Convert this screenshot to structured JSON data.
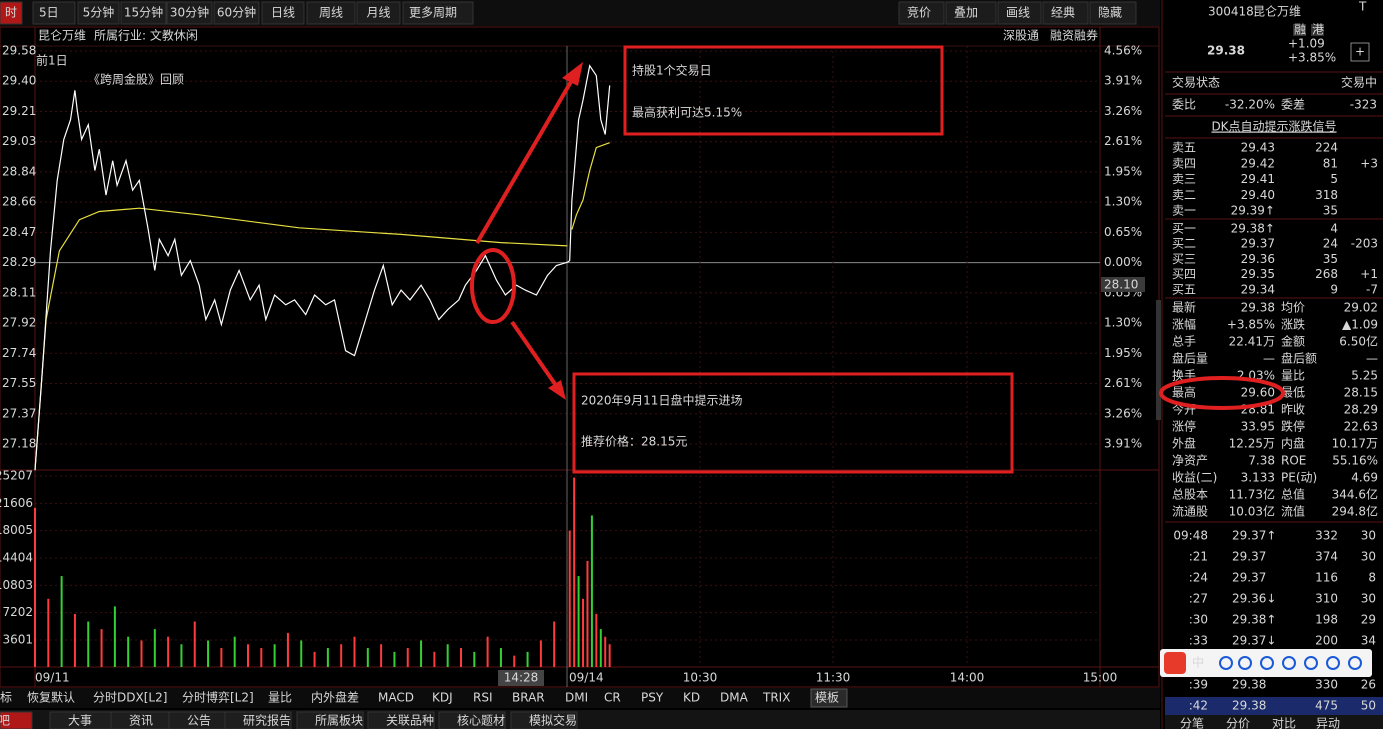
{
  "toolbar": {
    "left": [
      "时",
      "5日",
      "5分钟",
      "15分钟",
      "30分钟",
      "60分钟",
      "日线",
      "周线",
      "月线",
      "更多周期"
    ],
    "right": [
      "竞价",
      "叠加",
      "画线",
      "经典",
      "隐藏"
    ]
  },
  "header": {
    "name": "昆仑万维",
    "industry": "所属行业: 文教休闲",
    "tags": [
      "深股通",
      "融资融券"
    ],
    "prev_day": "前1日"
  },
  "annotations": {
    "title": "《跨周金股》回顾",
    "box1": [
      "持股1个交易日",
      "最高获利可达5.15%"
    ],
    "box2": [
      "2020年9月11日盘中提示进场",
      "推荐价格：28.15元"
    ]
  },
  "chart": {
    "price_ticks": [
      "29.58",
      "29.40",
      "29.21",
      "29.03",
      "28.84",
      "28.66",
      "28.47",
      "28.29",
      "28.11",
      "27.92",
      "27.74",
      "27.55",
      "27.37",
      "27.18"
    ],
    "pct_ticks": [
      "4.56%",
      "3.91%",
      "3.26%",
      "2.61%",
      "1.95%",
      "1.30%",
      "0.65%",
      "0.00%",
      "0.65%",
      "1.30%",
      "1.95%",
      "2.61%",
      "3.26%",
      "3.91%"
    ],
    "current": "28.10",
    "ylim": [
      27.18,
      29.58
    ],
    "xlim": [
      0,
      480
    ],
    "volume_ticks": [
      "25207",
      "21606",
      "18005",
      "14404",
      "10803",
      "7202",
      "3601"
    ],
    "vlim": [
      0,
      25207
    ],
    "time_labels": [
      "09/11",
      "14:28",
      "09/14",
      "10:30",
      "11:30",
      "14:00",
      "15:00"
    ],
    "price": {
      "minutes": [
        0,
        3,
        7,
        10,
        13,
        16,
        18,
        19,
        21,
        24,
        27,
        29,
        32,
        35,
        37,
        41,
        44,
        47,
        51,
        54,
        56,
        60,
        63,
        66,
        70,
        74,
        77,
        81,
        84,
        88,
        92,
        97,
        101,
        104,
        108,
        113,
        117,
        122,
        126,
        131,
        135,
        140,
        144,
        149,
        153,
        157,
        161,
        165,
        169,
        174,
        178,
        182,
        186,
        191,
        194,
        199,
        203,
        208,
        212,
        217,
        221,
        226,
        231,
        235,
        240,
        241,
        242,
        245,
        247,
        250,
        253,
        255,
        257,
        259
      ],
      "values": [
        27.02,
        27.57,
        28.36,
        28.79,
        29.04,
        29.16,
        29.34,
        29.22,
        29.04,
        29.13,
        28.85,
        28.98,
        28.7,
        28.91,
        28.76,
        28.91,
        28.73,
        28.79,
        28.49,
        28.24,
        28.43,
        28.33,
        28.43,
        28.21,
        28.3,
        28.15,
        27.94,
        28.06,
        27.91,
        28.12,
        28.24,
        28.06,
        28.15,
        27.94,
        28.09,
        28.03,
        28.06,
        27.97,
        28.09,
        28.03,
        28.06,
        27.75,
        27.72,
        27.94,
        28.12,
        28.27,
        28.03,
        28.12,
        28.06,
        28.15,
        28.06,
        27.94,
        28.0,
        28.06,
        28.15,
        28.24,
        28.33,
        28.18,
        28.09,
        28.15,
        28.12,
        28.09,
        28.21,
        28.27,
        28.29,
        28.3,
        28.67,
        29.16,
        29.28,
        29.49,
        29.43,
        29.16,
        29.07,
        29.37
      ]
    },
    "avg": [
      {
        "minutes": [
          0,
          5,
          11,
          20,
          29,
          47,
          74,
          119,
          165,
          210,
          240
        ],
        "values": [
          27.02,
          27.94,
          28.36,
          28.55,
          28.6,
          28.62,
          28.58,
          28.5,
          28.46,
          28.41,
          28.39
        ]
      },
      {
        "minutes": [
          242,
          244,
          247,
          250,
          253,
          259
        ],
        "values": [
          28.49,
          28.58,
          28.67,
          28.85,
          28.99,
          29.02
        ]
      }
    ],
    "volume": {
      "minutes": [
        0,
        6,
        12,
        18,
        24,
        30,
        36,
        42,
        48,
        54,
        60,
        66,
        72,
        78,
        84,
        90,
        96,
        102,
        108,
        114,
        120,
        126,
        132,
        138,
        144,
        150,
        156,
        162,
        168,
        174,
        180,
        186,
        192,
        198,
        204,
        210,
        216,
        222,
        228,
        234,
        241,
        243,
        245,
        247,
        249,
        251,
        253,
        255,
        257,
        259
      ],
      "values": [
        21000,
        9000,
        12000,
        7000,
        6000,
        5000,
        8000,
        4000,
        3500,
        5000,
        4000,
        3000,
        6000,
        3500,
        2500,
        4000,
        3000,
        2500,
        3000,
        4500,
        3500,
        2000,
        2500,
        3000,
        4000,
        2500,
        3000,
        2000,
        2500,
        3500,
        2000,
        3000,
        2500,
        2000,
        4000,
        2500,
        1500,
        2000,
        3500,
        6000,
        18000,
        25000,
        12000,
        9000,
        14000,
        20000,
        7000,
        5000,
        4000,
        3000
      ],
      "colors": [
        "#ff3b3b",
        "#ff3b3b",
        "#34d134",
        "#ff3b3b",
        "#34d134",
        "#ff3b3b",
        "#34d134",
        "#34d134",
        "#ff3b3b",
        "#34d134",
        "#ff3b3b",
        "#34d134",
        "#ff3b3b",
        "#34d134",
        "#ff3b3b",
        "#34d134",
        "#ff3b3b",
        "#ff3b3b",
        "#34d134",
        "#ff3b3b",
        "#34d134",
        "#ff3b3b",
        "#34d134",
        "#ff3b3b",
        "#ff3b3b",
        "#34d134",
        "#ff3b3b",
        "#34d134",
        "#ff3b3b",
        "#34d134",
        "#ff3b3b",
        "#34d134",
        "#ff3b3b",
        "#34d134",
        "#ff3b3b",
        "#34d134",
        "#ff3b3b",
        "#34d134",
        "#ff3b3b",
        "#ff3b3b",
        "#ff3b3b",
        "#ff3b3b",
        "#34d134",
        "#ff3b3b",
        "#ff3b3b",
        "#34d134",
        "#ff3b3b",
        "#34d134",
        "#ff3b3b",
        "#ff3b3b"
      ]
    }
  },
  "indicator_tabs": [
    "标",
    "恢复默认",
    "分时DDX[L2]",
    "分时博弈[L2]",
    "量比",
    "内外盘差",
    "MACD",
    "KDJ",
    "RSI",
    "BRAR",
    "DMI",
    "CR",
    "PSY",
    "KD",
    "DMA",
    "TRIX",
    "模板"
  ],
  "bottom_tabs": [
    "股吧",
    "大事",
    "资讯",
    "公告",
    "研究报告",
    "所属板块",
    "关联品种",
    "核心题材",
    "模拟交易"
  ],
  "quote": {
    "code": "300418",
    "name": "昆仑万维",
    "t": "T",
    "tags": [
      "融",
      "港"
    ],
    "price": "29.38",
    "change": "+1.09",
    "pct": "+3.85%",
    "add": "+"
  },
  "status": {
    "label": "交易状态",
    "value": "交易中",
    "ratio_label": "委比",
    "ratio": "-32.20%",
    "diff_label": "委差",
    "diff": "-323",
    "signal": "DK点自动提示涨跌信号"
  },
  "book": {
    "sell": [
      [
        "卖五",
        "29.43",
        "224",
        ""
      ],
      [
        "卖四",
        "29.42",
        "81",
        "+3"
      ],
      [
        "卖三",
        "29.41",
        "5",
        ""
      ],
      [
        "卖二",
        "29.40",
        "318",
        ""
      ],
      [
        "卖一",
        "29.39↑",
        "35",
        ""
      ]
    ],
    "buy": [
      [
        "买一",
        "29.38↑",
        "4",
        ""
      ],
      [
        "买二",
        "29.37",
        "24",
        "-203"
      ],
      [
        "买三",
        "29.36",
        "35",
        ""
      ],
      [
        "买四",
        "29.35",
        "268",
        "+1"
      ],
      [
        "买五",
        "29.34",
        "9",
        "-7"
      ]
    ]
  },
  "stats": [
    [
      "最新",
      "29.38",
      "均价",
      "29.02"
    ],
    [
      "涨幅",
      "+3.85%",
      "涨跌",
      "▲1.09"
    ],
    [
      "总手",
      "22.41万",
      "金额",
      "6.50亿"
    ],
    [
      "盘后量",
      "—",
      "盘后额",
      "—"
    ],
    [
      "换手",
      "2.03%",
      "量比",
      "5.25"
    ],
    [
      "最高",
      "29.60",
      "最低",
      "28.15"
    ],
    [
      "今开",
      "28.81",
      "昨收",
      "28.29"
    ],
    [
      "涨停",
      "33.95",
      "跌停",
      "22.63"
    ],
    [
      "外盘",
      "12.25万",
      "内盘",
      "10.17万"
    ],
    [
      "净资产",
      "7.38",
      "ROE",
      "55.16%"
    ],
    [
      "收益(二)",
      "3.133",
      "PE(动)",
      "4.69"
    ],
    [
      "总股本",
      "11.73亿",
      "总值",
      "344.6亿"
    ],
    [
      "流通股",
      "10.03亿",
      "流值",
      "294.8亿"
    ]
  ],
  "ticks": [
    [
      "09:48",
      "29.37↑",
      "332",
      "30"
    ],
    [
      ":21",
      "29.37",
      "374",
      "30"
    ],
    [
      ":24",
      "29.37",
      "116",
      "8"
    ],
    [
      ":27",
      "29.36↓",
      "310",
      "30"
    ],
    [
      ":30",
      "29.38↑",
      "198",
      "29"
    ],
    [
      ":33",
      "29.37↓",
      "200",
      "34"
    ],
    [
      ":39",
      "29.38",
      "330",
      "26"
    ],
    [
      ":42",
      "29.38",
      "475",
      "50"
    ]
  ],
  "ime": "中",
  "side_tabs": [
    "分笔",
    "分价",
    "对比",
    "异动"
  ]
}
